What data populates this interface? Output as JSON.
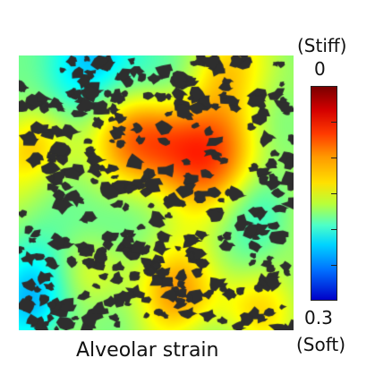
{
  "image": {
    "caption": "Alveolar strain",
    "subject": "alveolar tissue strain field"
  },
  "colorbar": {
    "top_descriptor": "(Stiff)",
    "top_value": "0",
    "bottom_value": "0.3",
    "bottom_descriptor": "(Soft)",
    "colormap": "jet"
  }
}
